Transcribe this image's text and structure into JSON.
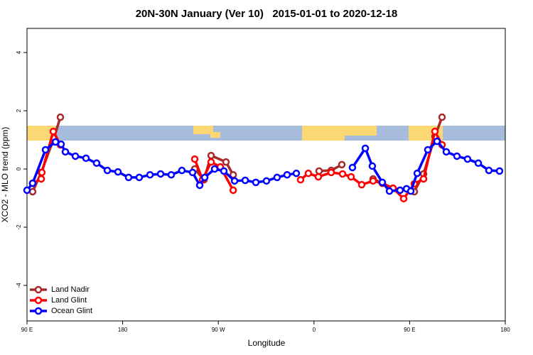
{
  "chart_data": {
    "type": "line",
    "title": "20N-30N January (Ver 10)   2015-01-01 to 2020-12-18",
    "x_label": "Longitude",
    "y_label": "XCO2 - MLO trend (ppm)",
    "xlim": [
      90,
      540
    ],
    "ylim": [
      -5.22,
      4.83
    ],
    "xticks": [
      {
        "value": 90,
        "label": "90 E"
      },
      180,
      {
        "value": 270,
        "label": "90 W"
      },
      {
        "value": 360,
        "label": "0"
      },
      {
        "value": 450,
        "label": "90 E"
      },
      {
        "value": 540,
        "label": "180"
      }
    ],
    "yticks": [
      -4,
      -2,
      0,
      2,
      4
    ],
    "legend": "bottom-left",
    "series": [
      {
        "name": "Land Nadir",
        "color": "#a52a2a",
        "x": [
          95.3,
          103.4,
          115.4,
          121.4,
          null,
          247.8,
          256.5,
          263.2,
          277.2,
          284.0,
          null,
          364.8,
          376.2,
          386.2,
          null,
          415.6,
          424.3,
          434.4,
          454.4,
          463.1,
          473.8,
          480.5
        ],
        "values": [
          -0.78,
          -0.12,
          1.07,
          1.78,
          null,
          0.0,
          -0.37,
          0.46,
          0.24,
          -0.2,
          null,
          -0.07,
          -0.05,
          0.15,
          null,
          -0.34,
          -0.49,
          -0.66,
          -0.78,
          -0.17,
          1.12,
          1.78
        ]
      },
      {
        "name": "Land Glint",
        "color": "#ff0000",
        "x": [
          95.3,
          103.4,
          104.0,
          114.7,
          121.4,
          null,
          247.8,
          255.2,
          263.2,
          271.9,
          284.0,
          null,
          347.4,
          354.7,
          364.1,
          376.2,
          386.9,
          394.9,
          404.9,
          415.6,
          424.3,
          434.4,
          444.4,
          454.4,
          463.1,
          473.8,
          480.5
        ],
        "values": [
          -0.49,
          -0.34,
          -0.12,
          1.29,
          0.83,
          null,
          0.34,
          -0.37,
          0.24,
          0.07,
          -0.73,
          null,
          -0.37,
          -0.15,
          -0.27,
          -0.12,
          -0.17,
          -0.27,
          -0.54,
          -0.41,
          -0.49,
          -0.66,
          -1.02,
          -0.51,
          -0.34,
          1.29,
          0.83
        ]
      },
      {
        "name": "Ocean Glint",
        "color": "#0000ff",
        "x": [
          90.0,
          95.3,
          107.4,
          116.8,
          122.1,
          126.1,
          135.5,
          145.5,
          155.5,
          165.6,
          175.6,
          185.6,
          195.6,
          205.7,
          215.7,
          225.7,
          235.7,
          245.8,
          252.5,
          257.2,
          266.5,
          275.2,
          285.3,
          295.3,
          305.3,
          315.3,
          325.3,
          334.7,
          343.4,
          null,
          396.2,
          408.3,
          414.9,
          424.3,
          431.0,
          441.0,
          447.1,
          451.1,
          457.1,
          467.1,
          475.8,
          484.5,
          494.5,
          504.5,
          514.6,
          524.6,
          534.6
        ],
        "values": [
          -0.73,
          -0.49,
          0.66,
          0.93,
          0.85,
          0.59,
          0.44,
          0.37,
          0.2,
          -0.05,
          -0.1,
          -0.29,
          -0.29,
          -0.2,
          -0.17,
          -0.2,
          -0.05,
          -0.12,
          -0.56,
          -0.29,
          0.0,
          -0.07,
          -0.41,
          -0.39,
          -0.46,
          -0.41,
          -0.29,
          -0.2,
          -0.15,
          null,
          0.05,
          0.71,
          0.1,
          -0.46,
          -0.76,
          -0.73,
          -0.68,
          -0.76,
          -0.15,
          0.66,
          0.95,
          0.59,
          0.44,
          0.34,
          0.2,
          -0.05,
          -0.07
        ]
      }
    ]
  }
}
